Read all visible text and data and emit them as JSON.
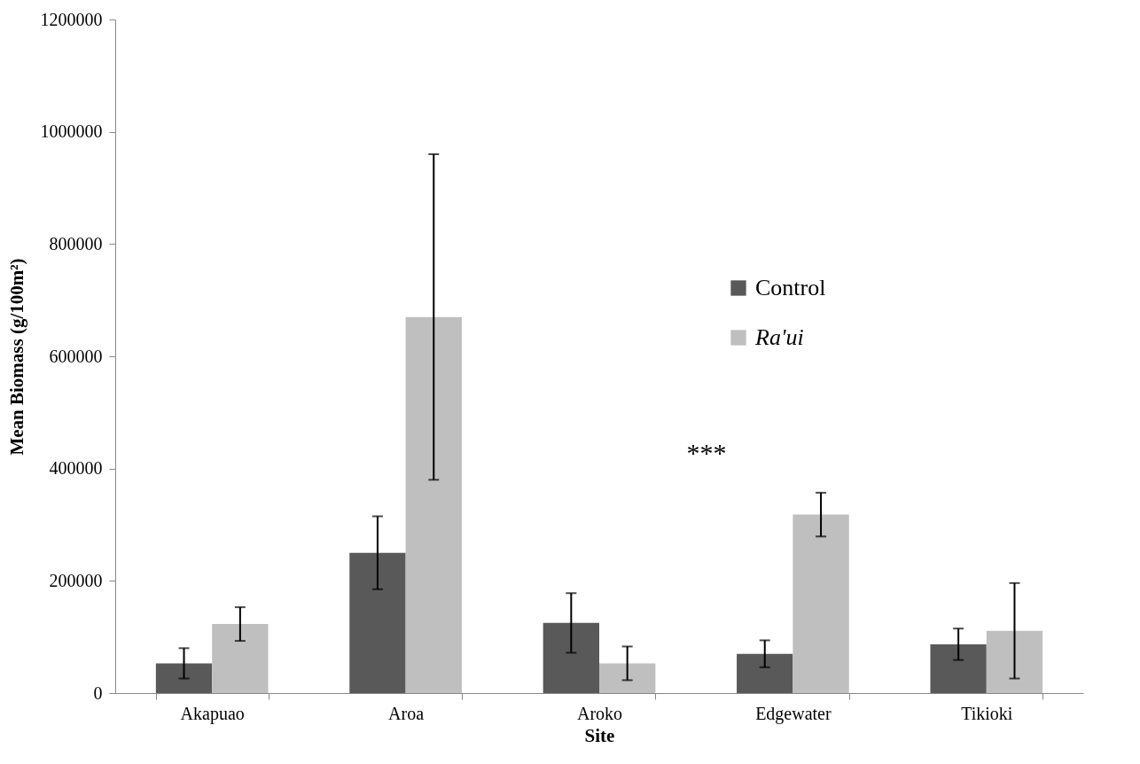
{
  "chart_data": {
    "type": "bar",
    "xlabel": "Site",
    "ylabel": "Mean Biomass (g/100m²)",
    "categories": [
      "Akapuao",
      "Aroa",
      "Aroko",
      "Edgewater",
      "Tikioki"
    ],
    "series": [
      {
        "name": "Control",
        "color": "#595959",
        "values": [
          53000,
          250000,
          125000,
          70000,
          87000
        ],
        "errors": [
          27000,
          65000,
          53000,
          24000,
          28000
        ]
      },
      {
        "name": "Ra'ui",
        "color": "#bfbfbf",
        "values": [
          123000,
          670000,
          53000,
          318000,
          111000
        ],
        "errors": [
          30000,
          290000,
          30000,
          39000,
          85000
        ]
      }
    ],
    "ylim": [
      0,
      1200000
    ],
    "yticks": [
      0,
      200000,
      400000,
      600000,
      800000,
      1000000,
      1200000
    ],
    "grid": false,
    "legend": "right",
    "annotations": [
      "***"
    ]
  }
}
